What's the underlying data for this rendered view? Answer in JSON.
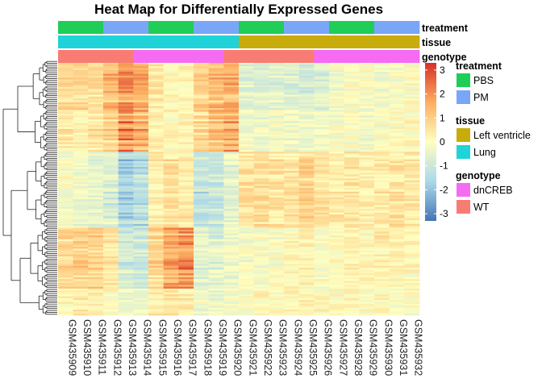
{
  "chart_data": {
    "type": "heatmap",
    "title": "Heat Map for Differentially Expressed Genes",
    "columns": [
      "GSM435909",
      "GSM435910",
      "GSM435911",
      "GSM435912",
      "GSM435913",
      "GSM435914",
      "GSM435915",
      "GSM435916",
      "GSM435917",
      "GSM435918",
      "GSM435919",
      "GSM435920",
      "GSM435921",
      "GSM435922",
      "GSM435923",
      "GSM435924",
      "GSM435925",
      "GSM435926",
      "GSM435927",
      "GSM435928",
      "GSM435929",
      "GSM435930",
      "GSM435931",
      "GSM435932"
    ],
    "annotations": [
      {
        "name": "treatment",
        "values": [
          "PBS",
          "PBS",
          "PBS",
          "PM",
          "PM",
          "PM",
          "PBS",
          "PBS",
          "PBS",
          "PM",
          "PM",
          "PM",
          "PBS",
          "PBS",
          "PBS",
          "PM",
          "PM",
          "PM",
          "PBS",
          "PBS",
          "PBS",
          "PM",
          "PM",
          "PM"
        ]
      },
      {
        "name": "tissue",
        "values": [
          "Lung",
          "Lung",
          "Lung",
          "Lung",
          "Lung",
          "Lung",
          "Lung",
          "Lung",
          "Lung",
          "Lung",
          "Lung",
          "Lung",
          "Left ventricle",
          "Left ventricle",
          "Left ventricle",
          "Left ventricle",
          "Left ventricle",
          "Left ventricle",
          "Left ventricle",
          "Left ventricle",
          "Left ventricle",
          "Left ventricle",
          "Left ventricle",
          "Left ventricle"
        ]
      },
      {
        "name": "genotype",
        "values": [
          "WT",
          "WT",
          "WT",
          "WT",
          "WT",
          "dnCREB",
          "dnCREB",
          "dnCREB",
          "dnCREB",
          "dnCREB",
          "dnCREB",
          "WT",
          "WT",
          "WT",
          "WT",
          "WT",
          "WT",
          "dnCREB",
          "dnCREB",
          "dnCREB",
          "dnCREB",
          "dnCREB",
          "dnCREB",
          "dnCREB"
        ]
      }
    ],
    "legend": {
      "groups": [
        {
          "title": "treatment",
          "items": [
            {
              "label": "PBS",
              "color": "#1fce57"
            },
            {
              "label": "PM",
              "color": "#7aa6f7"
            }
          ]
        },
        {
          "title": "tissue",
          "items": [
            {
              "label": "Left ventricle",
              "color": "#c8ac0c"
            },
            {
              "label": "Lung",
              "color": "#1fd3d9"
            }
          ]
        },
        {
          "title": "genotype",
          "items": [
            {
              "label": "dnCREB",
              "color": "#f56cf2"
            },
            {
              "label": "WT",
              "color": "#f97c74"
            }
          ]
        }
      ]
    },
    "color_scale": {
      "ticks": [
        3,
        2,
        1,
        0,
        -1,
        -2,
        -3
      ],
      "range": [
        -3.3,
        3.3
      ],
      "colors": [
        "#4575b4",
        "#abd9e9",
        "#ffffbf",
        "#fdae61",
        "#d73027"
      ]
    },
    "row_clusters": [
      {
        "count": 26,
        "pattern": [
          0.7,
          0.8,
          0.6,
          1.2,
          1.8,
          1.4,
          0.4,
          0.1,
          0.2,
          0.9,
          1.2,
          1.4,
          -0.5,
          -0.6,
          -0.5,
          -0.6,
          -0.8,
          -0.6,
          -0.2,
          -0.1,
          -0.1,
          -0.2,
          -0.1,
          0.0
        ]
      },
      {
        "count": 22,
        "pattern": [
          0.4,
          0.3,
          0.6,
          1.0,
          2.1,
          1.6,
          0.3,
          0.2,
          0.3,
          0.8,
          1.4,
          1.6,
          -0.2,
          -0.3,
          -0.2,
          -0.3,
          -0.3,
          -0.2,
          -0.1,
          -0.1,
          -0.2,
          -0.1,
          0.0,
          0.1
        ]
      },
      {
        "count": 40,
        "pattern": [
          -0.1,
          -0.3,
          -0.4,
          -0.8,
          -1.8,
          -1.4,
          0.3,
          0.6,
          0.4,
          -1.2,
          -1.1,
          -0.6,
          0.6,
          0.7,
          0.5,
          0.6,
          0.9,
          0.6,
          0.4,
          0.5,
          0.3,
          0.4,
          0.6,
          0.5
        ]
      },
      {
        "count": 32,
        "pattern": [
          0.7,
          0.9,
          0.8,
          0.4,
          -0.9,
          -0.9,
          0.8,
          1.6,
          1.9,
          -0.5,
          -0.6,
          -0.3,
          -0.2,
          -0.1,
          -0.1,
          0.1,
          0.2,
          0.0,
          0.1,
          0.2,
          0.1,
          0.3,
          0.2,
          0.1
        ]
      },
      {
        "count": 14,
        "pattern": [
          0.2,
          0.3,
          0.2,
          0.1,
          -0.3,
          -0.2,
          0.3,
          0.4,
          0.3,
          -0.2,
          -0.3,
          -0.1,
          0.0,
          0.1,
          0.0,
          0.1,
          0.2,
          0.1,
          0.0,
          0.1,
          0.0,
          0.1,
          0.0,
          0.0
        ]
      }
    ]
  }
}
